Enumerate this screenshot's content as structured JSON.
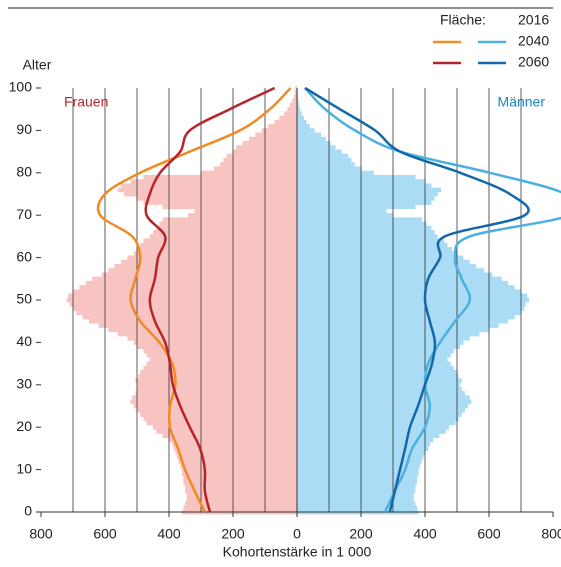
{
  "chart_data": {
    "type": "pyramid",
    "legend_title": "Fläche:",
    "ylabel": "Alter",
    "xlabel": "Kohortenstärke in 1 000",
    "left_label": "Frauen",
    "right_label": "Männer",
    "xlim": [
      -800,
      800
    ],
    "xticks": [
      {
        "value": -800,
        "label": "800"
      },
      {
        "value": -600,
        "label": "600"
      },
      {
        "value": -400,
        "label": "400"
      },
      {
        "value": -200,
        "label": "200"
      },
      0,
      200,
      400,
      600,
      800
    ],
    "xgrid": [
      -700,
      -600,
      -500,
      -400,
      -300,
      -200,
      -100,
      100,
      200,
      300,
      400,
      500,
      600,
      700
    ],
    "ylim": [
      0,
      100
    ],
    "yticks": [
      0,
      10,
      20,
      30,
      40,
      50,
      60,
      70,
      80,
      90,
      100
    ],
    "ages": [
      0,
      1,
      2,
      3,
      4,
      5,
      6,
      7,
      8,
      9,
      10,
      11,
      12,
      13,
      14,
      15,
      16,
      17,
      18,
      19,
      20,
      21,
      22,
      23,
      24,
      25,
      26,
      27,
      28,
      29,
      30,
      31,
      32,
      33,
      34,
      35,
      36,
      37,
      38,
      39,
      40,
      41,
      42,
      43,
      44,
      45,
      46,
      47,
      48,
      49,
      50,
      51,
      52,
      53,
      54,
      55,
      56,
      57,
      58,
      59,
      60,
      61,
      62,
      63,
      64,
      65,
      66,
      67,
      68,
      69,
      70,
      71,
      72,
      73,
      74,
      75,
      76,
      77,
      78,
      79,
      80,
      81,
      82,
      83,
      84,
      85,
      86,
      87,
      88,
      89,
      90,
      91,
      92,
      93,
      94,
      95,
      96,
      97,
      98,
      99,
      100
    ],
    "line_ages": [
      0,
      5,
      10,
      15,
      20,
      25,
      30,
      35,
      40,
      45,
      50,
      55,
      60,
      65,
      70,
      75,
      80,
      85,
      90,
      95,
      100
    ],
    "series": [
      {
        "name": "2016",
        "style": "area",
        "female": {
          "color": "#f7c4c1",
          "values": [
            360,
            355,
            350,
            345,
            345,
            350,
            350,
            355,
            355,
            360,
            360,
            365,
            370,
            375,
            380,
            385,
            390,
            400,
            420,
            440,
            450,
            470,
            480,
            490,
            500,
            510,
            520,
            515,
            505,
            500,
            500,
            505,
            495,
            490,
            480,
            470,
            460,
            470,
            480,
            500,
            510,
            530,
            560,
            590,
            620,
            650,
            670,
            690,
            700,
            710,
            720,
            715,
            700,
            680,
            660,
            640,
            610,
            590,
            570,
            550,
            530,
            510,
            500,
            490,
            480,
            460,
            450,
            440,
            430,
            420,
            340,
            320,
            420,
            480,
            500,
            540,
            560,
            550,
            520,
            480,
            300,
            260,
            240,
            230,
            220,
            200,
            190,
            170,
            150,
            130,
            110,
            90,
            70,
            55,
            40,
            30,
            22,
            15,
            10,
            7,
            5
          ]
        },
        "male": {
          "color": "#abdcf5",
          "values": [
            380,
            375,
            370,
            365,
            365,
            370,
            370,
            375,
            375,
            380,
            380,
            385,
            390,
            395,
            400,
            410,
            415,
            425,
            445,
            465,
            475,
            495,
            505,
            515,
            525,
            535,
            545,
            540,
            525,
            515,
            510,
            515,
            505,
            500,
            490,
            480,
            470,
            480,
            490,
            510,
            520,
            540,
            570,
            600,
            630,
            660,
            680,
            700,
            710,
            715,
            725,
            720,
            700,
            680,
            660,
            640,
            610,
            585,
            560,
            540,
            520,
            500,
            485,
            470,
            460,
            440,
            430,
            420,
            405,
            390,
            300,
            280,
            370,
            420,
            430,
            440,
            450,
            420,
            400,
            370,
            240,
            200,
            180,
            170,
            160,
            140,
            120,
            105,
            90,
            75,
            55,
            40,
            30,
            22,
            15,
            10,
            7,
            5,
            3,
            2,
            1
          ]
        }
      },
      {
        "name": "2040",
        "style": "line",
        "female": {
          "color": "#f08a24",
          "values": [
            288,
            320,
            350,
            372,
            397,
            397,
            380,
            390,
            430,
            490,
            520,
            505,
            490,
            515,
            615,
            600,
            490,
            335,
            178,
            85,
            20
          ]
        },
        "male": {
          "color": "#4bb0e0",
          "values": [
            275,
            306,
            338,
            360,
            400,
            415,
            400,
            410,
            447,
            494,
            540,
            515,
            494,
            540,
            853,
            838,
            603,
            322,
            181,
            88,
            25
          ]
        }
      },
      {
        "name": "2060",
        "style": "line",
        "female": {
          "color": "#b7252a",
          "values": [
            272,
            288,
            288,
            303,
            335,
            365,
            388,
            397,
            412,
            444,
            460,
            444,
            434,
            412,
            470,
            460,
            428,
            365,
            335,
            210,
            70
          ]
        },
        "male": {
          "color": "#1268a9",
          "values": [
            290,
            306,
            322,
            338,
            353,
            378,
            400,
            422,
            431,
            415,
            400,
            410,
            447,
            462,
            712,
            665,
            510,
            322,
            244,
            134,
            25
          ]
        }
      }
    ]
  }
}
